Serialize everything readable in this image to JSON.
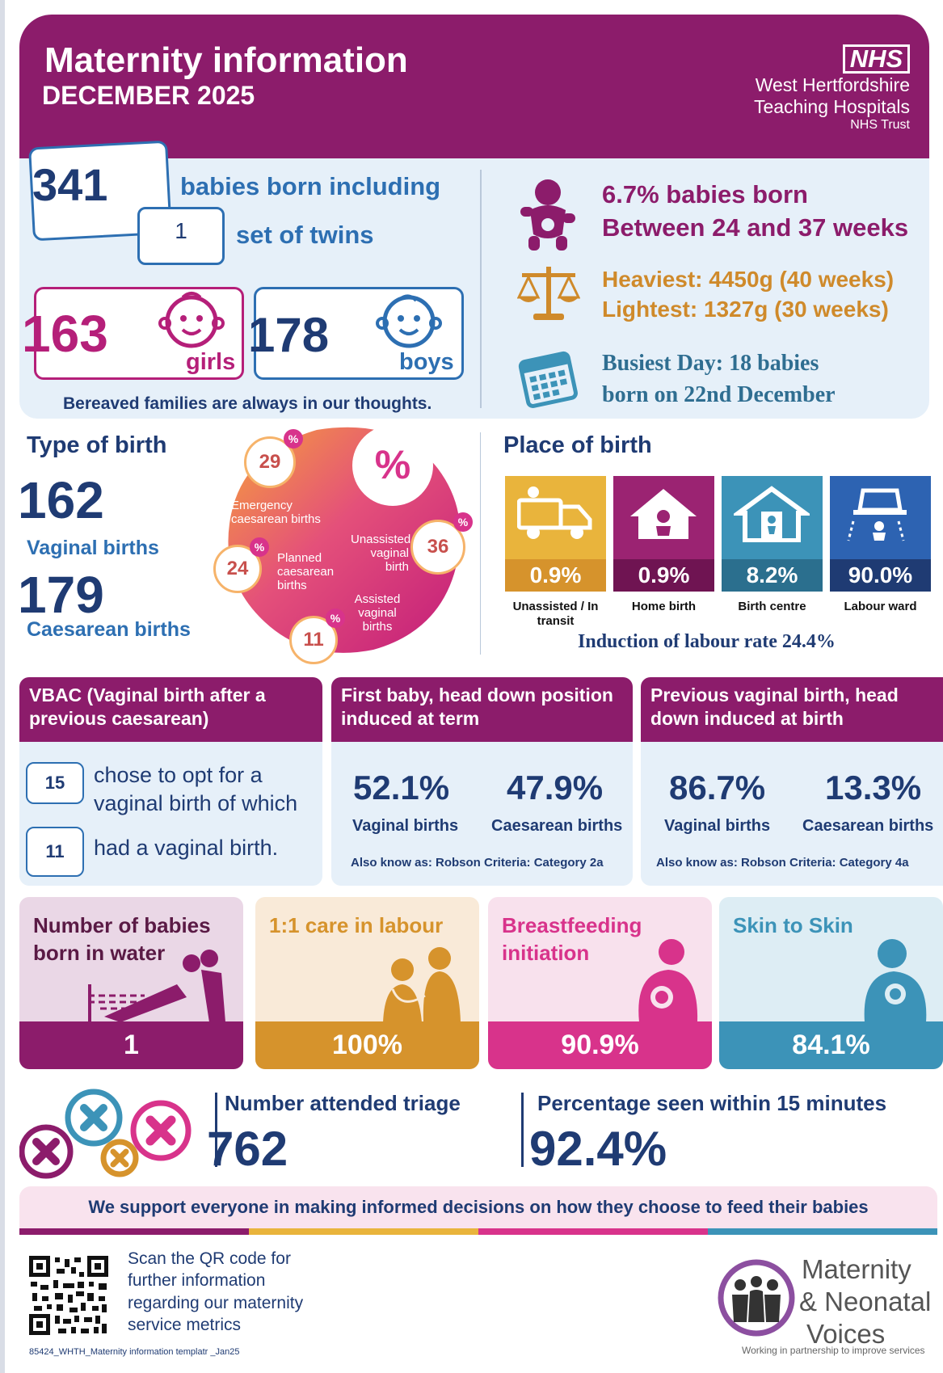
{
  "header": {
    "title": "Maternity information",
    "month": "DECEMBER 2025",
    "nhs_logo": "NHS",
    "trust_line1": "West Hertfordshire",
    "trust_line2": "Teaching Hospitals",
    "trust_line3": "NHS Trust"
  },
  "births": {
    "total": "341",
    "total_label": "babies born including",
    "twins": "1",
    "twins_label": "set of twins",
    "girls": "163",
    "girls_label": "girls",
    "boys": "178",
    "boys_label": "boys",
    "bereaved": "Bereaved families are always in our thoughts."
  },
  "stats": {
    "preterm_line1": "6.7% babies born",
    "preterm_line2": "Between 24 and 37 weeks",
    "heaviest": "Heaviest: 4450g (40 weeks)",
    "lightest": "Lightest:  1327g (30 weeks)",
    "busiest_line1": "Busiest Day: 18 babies",
    "busiest_line2": "born on 22nd December"
  },
  "type_of_birth": {
    "title": "Type of birth",
    "vaginal_count": "162",
    "vaginal_label": "Vaginal births",
    "caesarean_count": "179",
    "caesarean_label": "Caesarean births",
    "percent_symbol": "%",
    "segments": [
      {
        "label": "Emergency caesarean births",
        "value": 29
      },
      {
        "label": "Planned caesarean births",
        "value": 24
      },
      {
        "label": "Assisted vaginal births",
        "value": 11
      },
      {
        "label": "Unassisted vaginal birth",
        "value": 36
      }
    ]
  },
  "place_of_birth": {
    "title": "Place of birth",
    "places": [
      {
        "label": "Unassisted / In transit",
        "value": "0.9%",
        "color": "#e9b43c",
        "band": "#d6932c"
      },
      {
        "label": "Home birth",
        "value": "0.9%",
        "color": "#9b2372",
        "band": "#6f1452"
      },
      {
        "label": "Birth centre",
        "value": "8.2%",
        "color": "#3c93b8",
        "band": "#2b6f8e"
      },
      {
        "label": "Labour ward",
        "value": "90.0%",
        "color": "#2d63b2",
        "band": "#1f3b73"
      }
    ],
    "induction": "Induction of labour rate 24.4%"
  },
  "vbac": {
    "title": "VBAC (Vaginal birth after a previous caesarean)",
    "opted_count": "15",
    "opted_label_1": "chose to opt for a",
    "opted_label_2": "vaginal birth of which",
    "achieved_count": "11",
    "achieved_label": "had a vaginal birth."
  },
  "first_baby": {
    "title": "First baby, head down position induced at term",
    "vaginal_pct": "52.1%",
    "vaginal_label": "Vaginal births",
    "caesarean_pct": "47.9%",
    "caesarean_label": "Caesarean births",
    "robson": "Also know as: Robson Criteria: Category 2a"
  },
  "previous_vaginal": {
    "title": "Previous vaginal birth, head down induced at birth",
    "vaginal_pct": "86.7%",
    "vaginal_label": "Vaginal births",
    "caesarean_pct": "13.3%",
    "caesarean_label": "Caesarean births",
    "robson": "Also know as: Robson Criteria: Category 4a"
  },
  "cards": [
    {
      "title": "Number of babies born in water",
      "value": "1",
      "bg": "#ead7e6",
      "band": "#8c1c6b",
      "fg": "#5a1a45",
      "icon": "water-birth-icon"
    },
    {
      "title": "1:1 care in labour",
      "value": "100%",
      "bg": "#f9ead8",
      "band": "#d6932c",
      "fg": "#d6932c",
      "icon": "midwife-care-icon"
    },
    {
      "title": "Breastfeeding initiation",
      "value": "90.9%",
      "bg": "#f8e1ed",
      "band": "#d8338b",
      "fg": "#d8338b",
      "icon": "breastfeeding-icon"
    },
    {
      "title": "Skin to Skin",
      "value": "84.1%",
      "bg": "#ddedf4",
      "band": "#3c93b8",
      "fg": "#3c93b8",
      "icon": "skin-to-skin-icon"
    }
  ],
  "triage": {
    "attended_label": "Number attended triage",
    "attended": "762",
    "seen_label": "Percentage seen within 15 minutes",
    "seen": "92.4%"
  },
  "support_message": "We support everyone in making informed decisions on how they choose to feed their babies",
  "footer": {
    "qr_text_1": "Scan the QR code for",
    "qr_text_2": "further information",
    "qr_text_3": "regarding our maternity",
    "qr_text_4": "service metrics",
    "file_ref": "85424_WHTH_Maternity information templatr _Jan25",
    "mnv_line1": "Maternity",
    "mnv_line2": "& Neonatal",
    "mnv_line3": "Voices",
    "mnv_tagline": "Working in partnership to improve services"
  }
}
